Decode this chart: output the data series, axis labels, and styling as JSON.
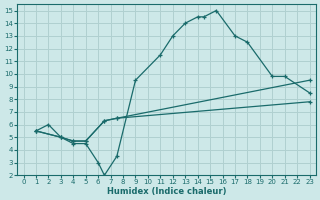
{
  "xlabel": "Humidex (Indice chaleur)",
  "bg_color": "#cde8e8",
  "grid_color": "#b0d0d0",
  "line_color": "#1a6b6b",
  "xlim": [
    -0.5,
    23.5
  ],
  "ylim": [
    2,
    15.5
  ],
  "xticks": [
    0,
    1,
    2,
    3,
    4,
    5,
    6,
    7,
    8,
    9,
    10,
    11,
    12,
    13,
    14,
    15,
    16,
    17,
    18,
    19,
    20,
    21,
    22,
    23
  ],
  "yticks": [
    2,
    3,
    4,
    5,
    6,
    7,
    8,
    9,
    10,
    11,
    12,
    13,
    14,
    15
  ],
  "line1_x": [
    1,
    2,
    3,
    4,
    5,
    6,
    6.5,
    7.5,
    9,
    11,
    12,
    13,
    14,
    14.5,
    15.5,
    17,
    18,
    20,
    21,
    23
  ],
  "line1_y": [
    5.5,
    6.0,
    5.0,
    4.5,
    4.5,
    3.0,
    2.0,
    3.5,
    9.5,
    11.5,
    13.0,
    14.0,
    14.5,
    14.5,
    15.0,
    13.0,
    12.5,
    9.8,
    9.8,
    8.5
  ],
  "line2_x": [
    1,
    3,
    4,
    5,
    6.5,
    7.5,
    23
  ],
  "line2_y": [
    5.5,
    5.0,
    4.7,
    4.7,
    6.3,
    6.5,
    9.5
  ],
  "line3_x": [
    1,
    3,
    4,
    5,
    6.5,
    7.5,
    23
  ],
  "line3_y": [
    5.5,
    5.0,
    4.7,
    4.7,
    6.3,
    6.5,
    7.8
  ]
}
